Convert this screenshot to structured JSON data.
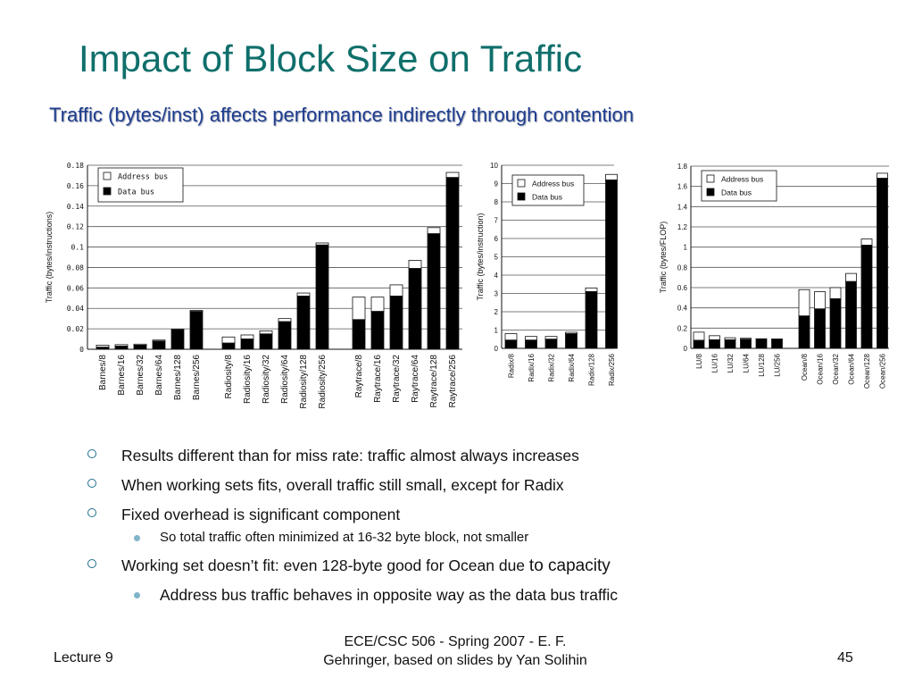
{
  "slide": {
    "title": "Impact of Block Size on Traffic",
    "subtitle": "Traffic (bytes/inst) affects performance indirectly through contention"
  },
  "colors": {
    "title": "#0f6f6b",
    "subtitle": "#1f3d8f",
    "bullet_ring": "#1f6f8b",
    "bullet_dot": "#7fb4c9",
    "data_bus": "#000000",
    "address_bus": "#ffffff"
  },
  "chart_data": [
    {
      "type": "bar",
      "stacked": true,
      "ylabel": "Traffic (bytes/instructions)",
      "ylim": [
        0,
        0.18
      ],
      "yticks": [
        "0",
        "0.02",
        "0.04",
        "0.06",
        "0.08",
        "0.1",
        "0.12",
        "0.14",
        "0.16",
        "0.18"
      ],
      "legend": [
        "Address bus",
        "Data bus"
      ],
      "legend_position": "top-left",
      "grid": true,
      "groups": [
        {
          "categories": [
            "Barnes/8",
            "Barnes/16",
            "Barnes/32",
            "Barnes/64",
            "Barnes/128",
            "Barnes/256"
          ],
          "data_bus": [
            0.002,
            0.003,
            0.004,
            0.008,
            0.019,
            0.037
          ],
          "address_bus": [
            0.002,
            0.0015,
            0.001,
            0.001,
            0.0005,
            0.001
          ]
        },
        {
          "categories": [
            "Radiosity/8",
            "Radiosity/16",
            "Radiosity/32",
            "Radiosity/64",
            "Radiosity/128",
            "Radiosity/256"
          ],
          "data_bus": [
            0.006,
            0.01,
            0.015,
            0.027,
            0.052,
            0.102
          ],
          "address_bus": [
            0.006,
            0.004,
            0.003,
            0.003,
            0.003,
            0.002
          ]
        },
        {
          "categories": [
            "Raytrace/8",
            "Raytrace/16",
            "Raytrace/32",
            "Raytrace/64",
            "Raytrace/128",
            "Raytrace/256"
          ],
          "data_bus": [
            0.029,
            0.037,
            0.052,
            0.079,
            0.113,
            0.168
          ],
          "address_bus": [
            0.022,
            0.014,
            0.011,
            0.008,
            0.006,
            0.005
          ]
        }
      ]
    },
    {
      "type": "bar",
      "stacked": true,
      "ylabel": "Traffic (bytes/instruction)",
      "ylim": [
        0,
        10
      ],
      "yticks": [
        "0",
        "1",
        "2",
        "3",
        "4",
        "5",
        "6",
        "7",
        "8",
        "9",
        "10"
      ],
      "legend": [
        "Address bus",
        "Data bus"
      ],
      "legend_position": "top-left",
      "grid": true,
      "groups": [
        {
          "categories": [
            "Radix/8",
            "Radix/16",
            "Radix/32",
            "Radix/64",
            "Radix/128",
            "Radix/256"
          ],
          "data_bus": [
            0.45,
            0.45,
            0.5,
            0.8,
            3.1,
            9.2
          ],
          "address_bus": [
            0.35,
            0.2,
            0.15,
            0.08,
            0.2,
            0.3
          ]
        }
      ]
    },
    {
      "type": "bar",
      "stacked": true,
      "ylabel": "Traffic (bytes/FLOP)",
      "ylim": [
        0,
        1.8
      ],
      "yticks": [
        "0",
        "0.2",
        "0.4",
        "0.6",
        "0.8",
        "1",
        "1.2",
        "1.4",
        "1.6",
        "1.8"
      ],
      "legend": [
        "Address bus",
        "Data bus"
      ],
      "legend_position": "top-left",
      "grid": true,
      "groups": [
        {
          "categories": [
            "LU/8",
            "LU/16",
            "LU/32",
            "LU/64",
            "LU/128",
            "LU/256"
          ],
          "data_bus": [
            0.08,
            0.085,
            0.085,
            0.09,
            0.09,
            0.09
          ],
          "address_bus": [
            0.08,
            0.04,
            0.02,
            0.01,
            0.005,
            0.003
          ]
        },
        {
          "categories": [
            "Ocean/8",
            "Ocean/16",
            "Ocean/32",
            "Ocean/64",
            "Ocean/128",
            "Ocean/256"
          ],
          "data_bus": [
            0.32,
            0.39,
            0.49,
            0.66,
            1.02,
            1.68
          ],
          "address_bus": [
            0.26,
            0.17,
            0.11,
            0.08,
            0.06,
            0.05
          ]
        }
      ]
    }
  ],
  "bullets": [
    {
      "level": 1,
      "text": "Results different than for miss rate: traffic almost always increases"
    },
    {
      "level": 1,
      "text": "When working sets fits, overall traffic still small, except for Radix"
    },
    {
      "level": 1,
      "text": "Fixed overhead is significant component"
    },
    {
      "level": 2,
      "text": "So total traffic often minimized at 16-32 byte block, not smaller"
    },
    {
      "level": 1,
      "text": "Working set doesn’t fit: even 128-byte good for Ocean due",
      "tail": "to capacity"
    },
    {
      "level": 2,
      "text": "Address bus traffic behaves in opposite way as the data bus traffic",
      "big": true
    }
  ],
  "footer": {
    "left": "Lecture 9",
    "center_line1": "ECE/CSC 506 - Spring 2007 - E. F.",
    "center_line2": "Gehringer, based on slides by Yan Solihin",
    "right": "45"
  }
}
